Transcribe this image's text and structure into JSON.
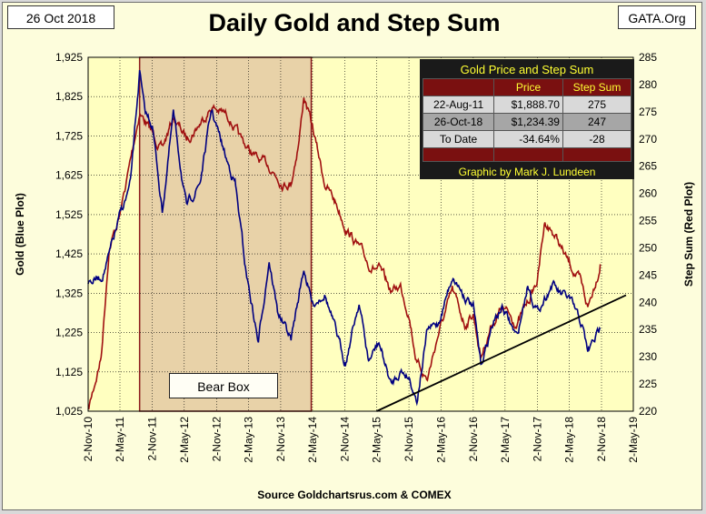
{
  "header": {
    "date": "26 Oct 2018",
    "title": "Daily Gold and Step Sum",
    "org": "GATA.Org",
    "source": "Source Goldchartsrus.com & COMEX"
  },
  "annotations": {
    "bear_box": "Bear Box"
  },
  "legend": {
    "title": "Gold Price and Step Sum",
    "col_price": "Price",
    "col_stepsum": "Step Sum",
    "rows": [
      {
        "label": "22-Aug-11",
        "price": "$1,888.70",
        "stepsum": "275"
      },
      {
        "label": "26-Oct-18",
        "price": "$1,234.39",
        "stepsum": "247"
      },
      {
        "label": "To Date",
        "price": "-34.64%",
        "stepsum": "-28"
      }
    ],
    "credit": "Graphic by Mark J. Lundeen"
  },
  "colors": {
    "gold": "#000080",
    "stepsum": "#a01010",
    "plot_bg": "#ffffc0",
    "bear_box": "#e8d2a8",
    "trend": "#000000"
  },
  "chart_data": {
    "type": "line",
    "title": "Daily Gold and Step Sum",
    "xlabel": "",
    "ylabel_left": "Gold   (Blue Plot)",
    "ylabel_right": "Step Sum   (Red Plot)",
    "ylim_left": [
      1025,
      1925
    ],
    "ylim_right": [
      220,
      285
    ],
    "xlim": [
      "2010-11-02",
      "2019-05-02"
    ],
    "grid": true,
    "y_ticks_left": [
      "1,025",
      "1,125",
      "1,225",
      "1,325",
      "1,425",
      "1,525",
      "1,625",
      "1,725",
      "1,825",
      "1,925"
    ],
    "y_ticks_right": [
      "220",
      "225",
      "230",
      "235",
      "240",
      "245",
      "250",
      "255",
      "260",
      "265",
      "270",
      "275",
      "280",
      "285"
    ],
    "x_ticks": [
      "2-Nov-10",
      "2-May-11",
      "2-Nov-11",
      "2-May-12",
      "2-Nov-12",
      "2-May-13",
      "2-Nov-13",
      "2-May-14",
      "2-Nov-14",
      "2-May-15",
      "2-Nov-15",
      "2-May-16",
      "2-Nov-16",
      "2-May-17",
      "2-Nov-17",
      "2-May-18",
      "2-Nov-18",
      "2-May-19"
    ],
    "bear_box_range": [
      "2011-08-22",
      "2014-04-25"
    ],
    "trendline": {
      "x": [
        "2015-05-02",
        "2019-05-02"
      ],
      "y": [
        1025,
        1320
      ],
      "axis": "left"
    },
    "series": [
      {
        "name": "Gold (Blue Plot)",
        "axis": "left",
        "x": [
          "2010-11-02",
          "2011-01-15",
          "2011-03-01",
          "2011-05-02",
          "2011-07-01",
          "2011-08-22",
          "2011-09-20",
          "2011-11-02",
          "2011-12-29",
          "2012-03-01",
          "2012-05-15",
          "2012-08-01",
          "2012-10-05",
          "2012-12-31",
          "2013-02-15",
          "2013-04-15",
          "2013-06-28",
          "2013-08-28",
          "2013-10-15",
          "2013-12-31",
          "2014-03-14",
          "2014-05-02",
          "2014-07-10",
          "2014-09-15",
          "2014-11-05",
          "2015-01-22",
          "2015-03-17",
          "2015-05-15",
          "2015-07-24",
          "2015-09-15",
          "2015-11-02",
          "2015-12-17",
          "2016-02-15",
          "2016-04-15",
          "2016-07-06",
          "2016-09-15",
          "2016-11-02",
          "2016-12-15",
          "2017-02-15",
          "2017-04-15",
          "2017-07-10",
          "2017-09-08",
          "2017-11-02",
          "2018-01-25",
          "2018-03-15",
          "2018-05-02",
          "2018-07-15",
          "2018-08-16",
          "2018-10-26"
        ],
        "y": [
          1355,
          1365,
          1420,
          1520,
          1600,
          1888,
          1780,
          1755,
          1535,
          1780,
          1540,
          1610,
          1790,
          1660,
          1610,
          1390,
          1200,
          1415,
          1280,
          1205,
          1390,
          1295,
          1330,
          1220,
          1150,
          1305,
          1150,
          1200,
          1090,
          1130,
          1115,
          1055,
          1230,
          1245,
          1370,
          1320,
          1290,
          1140,
          1240,
          1290,
          1210,
          1350,
          1280,
          1350,
          1320,
          1310,
          1240,
          1175,
          1234
        ]
      },
      {
        "name": "Step Sum (Red Plot)",
        "axis": "right",
        "x": [
          "2010-11-02",
          "2011-01-15",
          "2011-03-01",
          "2011-05-02",
          "2011-07-01",
          "2011-08-22",
          "2011-10-15",
          "2011-12-29",
          "2012-03-01",
          "2012-05-15",
          "2012-08-01",
          "2012-10-05",
          "2013-01-15",
          "2013-03-15",
          "2013-06-28",
          "2013-08-28",
          "2013-11-15",
          "2013-12-31",
          "2014-02-15",
          "2014-03-14",
          "2014-05-02",
          "2014-07-10",
          "2014-09-15",
          "2014-11-05",
          "2015-01-22",
          "2015-03-17",
          "2015-05-15",
          "2015-07-24",
          "2015-09-15",
          "2015-11-02",
          "2015-12-17",
          "2016-02-15",
          "2016-04-15",
          "2016-07-06",
          "2016-09-15",
          "2016-11-02",
          "2016-12-15",
          "2017-02-15",
          "2017-04-15",
          "2017-07-10",
          "2017-09-08",
          "2017-11-02",
          "2017-12-15",
          "2018-02-15",
          "2018-04-15",
          "2018-07-01",
          "2018-08-16",
          "2018-10-26"
        ],
        "y": [
          220,
          230,
          250,
          256,
          266,
          275,
          272,
          268,
          274,
          270,
          273,
          276,
          274,
          270,
          266,
          265,
          262,
          262,
          270,
          278,
          272,
          262,
          258,
          254,
          250,
          247,
          246,
          242,
          243,
          238,
          229,
          226,
          234,
          242,
          236,
          238,
          230,
          236,
          239,
          236,
          240,
          244,
          255,
          252,
          248,
          244,
          239,
          247
        ]
      }
    ]
  }
}
